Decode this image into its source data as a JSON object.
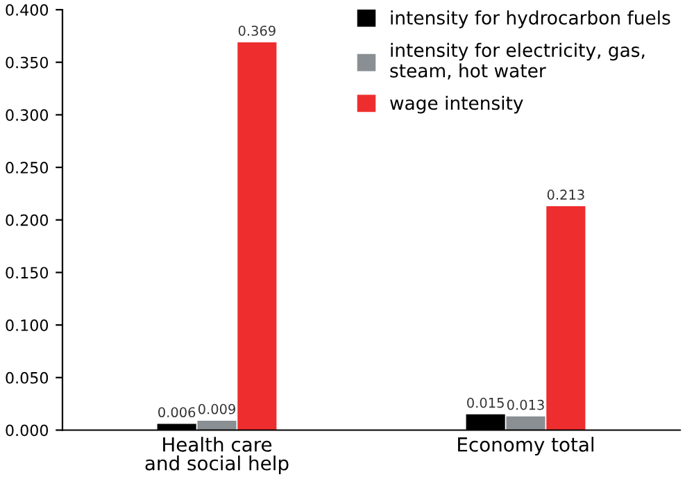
{
  "chart_data": {
    "type": "bar",
    "categories": [
      "Health care\nand social help",
      "Economy total"
    ],
    "series": [
      {
        "name": "intensity for hydrocarbon fuels",
        "color": "#000000",
        "values": [
          0.006,
          0.015
        ],
        "value_labels": [
          "0.006",
          "0.015"
        ]
      },
      {
        "name": "intensity for electricity, gas,\nsteam, hot water",
        "color": "#8a8f93",
        "values": [
          0.009,
          0.013
        ],
        "value_labels": [
          "0.009",
          "0.013"
        ]
      },
      {
        "name": "wage intensity",
        "color": "#ee2e2e",
        "values": [
          0.369,
          0.213
        ],
        "value_labels": [
          "0.369",
          "0.213"
        ]
      }
    ],
    "ylim": [
      0,
      0.4
    ],
    "yticks": [
      {
        "value": 0,
        "label": "0.000"
      },
      {
        "value": 0.05,
        "label": "0.050"
      },
      {
        "value": 0.1,
        "label": "0.100"
      },
      {
        "value": 0.15,
        "label": "0.150"
      },
      {
        "value": 0.2,
        "label": "0.200"
      },
      {
        "value": 0.25,
        "label": "0.250"
      },
      {
        "value": 0.3,
        "label": "0.300"
      },
      {
        "value": 0.35,
        "label": "0.350"
      },
      {
        "value": 0.4,
        "label": "0.400"
      }
    ],
    "grid": false,
    "legend": "top right"
  }
}
